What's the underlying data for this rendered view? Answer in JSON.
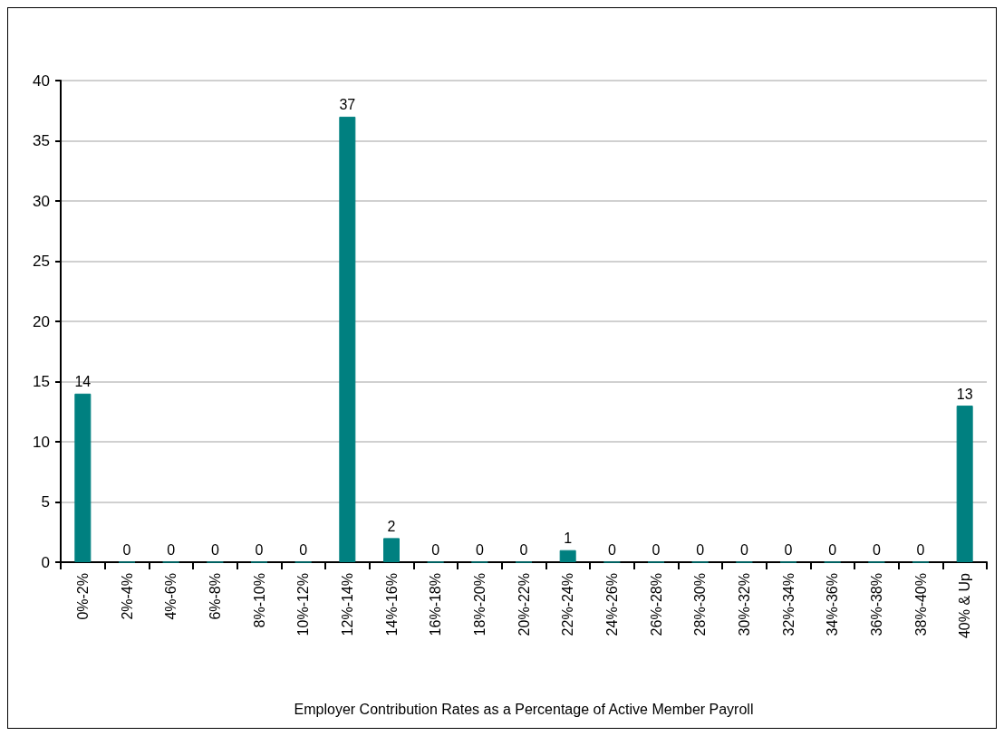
{
  "chart_data": {
    "type": "bar",
    "xlabel": "Employer Contribution Rates as a Percentage of Active Member Payroll",
    "categories": [
      "0%-2%",
      "2%-4%",
      "4%-6%",
      "6%-8%",
      "8%-10%",
      "10%-12%",
      "12%-14%",
      "14%-16%",
      "16%-18%",
      "18%-20%",
      "20%-22%",
      "22%-24%",
      "24%-26%",
      "26%-28%",
      "28%-30%",
      "30%-32%",
      "32%-34%",
      "34%-36%",
      "36%-38%",
      "38%-40%",
      "40% & Up"
    ],
    "values": [
      14,
      0,
      0,
      0,
      0,
      0,
      37,
      2,
      0,
      0,
      0,
      1,
      0,
      0,
      0,
      0,
      0,
      0,
      0,
      0,
      13
    ],
    "color": "#008080",
    "ylim": [
      0,
      40
    ],
    "yticks": [
      0,
      5,
      10,
      15,
      20,
      25,
      30,
      35,
      40
    ],
    "grid": "y",
    "data_labels": true
  }
}
